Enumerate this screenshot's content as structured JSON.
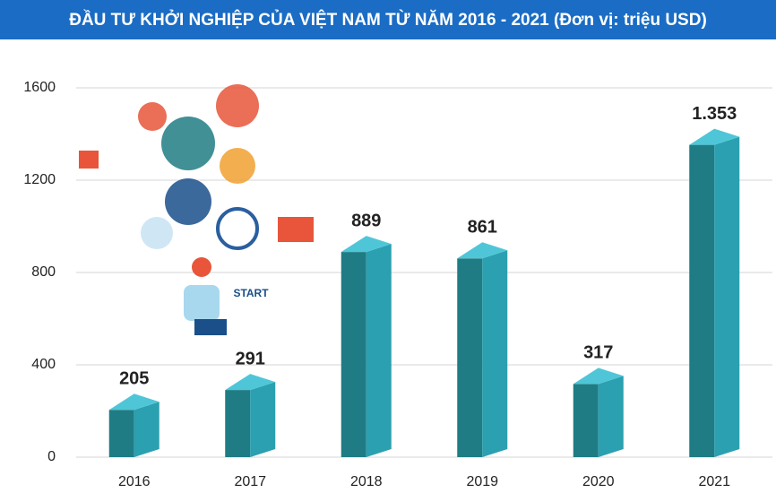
{
  "chart_data": {
    "type": "bar3d",
    "title": "ĐẦU TƯ KHỞI NGHIỆP CỦA VIỆT NAM TỪ NĂM 2016 - 2021 (Đơn vị: triệu USD)",
    "categories": [
      "2016",
      "2017",
      "2018",
      "2019",
      "2020",
      "2021"
    ],
    "values": [
      205,
      291,
      889,
      861,
      317,
      1353
    ],
    "value_labels": [
      "205",
      "291",
      "889",
      "861",
      "317",
      "1.353"
    ],
    "color": "#1f7c84",
    "ylim": [
      0,
      1600
    ],
    "yticks": [
      0,
      400,
      800,
      1200,
      1600
    ],
    "grid": true
  },
  "illustration": {
    "label": "START"
  }
}
